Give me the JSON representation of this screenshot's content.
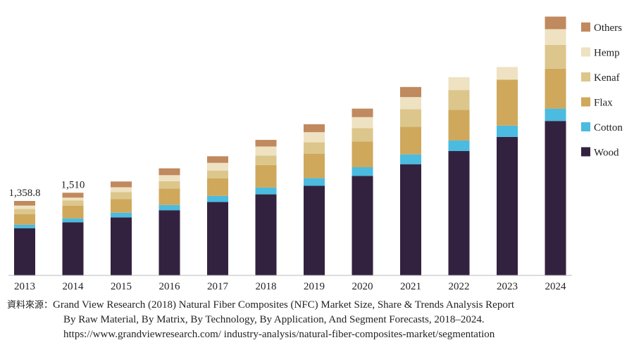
{
  "chart_data": {
    "type": "bar",
    "stacked": true,
    "title": "",
    "xlabel": "",
    "ylabel": "",
    "categories": [
      "2013",
      "2014",
      "2015",
      "2016",
      "2017",
      "2018",
      "2019",
      "2020",
      "2021",
      "2022",
      "2023",
      "2024"
    ],
    "series": [
      {
        "name": "Wood",
        "color": "#33223f",
        "values": [
          860,
          970,
          1060,
          1190,
          1340,
          1480,
          1635,
          1815,
          2030,
          2270,
          2530,
          2820
        ]
      },
      {
        "name": "Cotton",
        "color": "#4bbbe0",
        "values": [
          65,
          70,
          85,
          95,
          110,
          125,
          140,
          160,
          180,
          195,
          205,
          225
        ]
      },
      {
        "name": "Flax",
        "color": "#cfa85c",
        "values": [
          195,
          230,
          250,
          300,
          320,
          410,
          445,
          470,
          505,
          560,
          840,
          730
        ]
      },
      {
        "name": "Kenaf",
        "color": "#dcc68b",
        "values": [
          95,
          100,
          125,
          135,
          145,
          175,
          210,
          245,
          320,
          360,
          0,
          435
        ]
      },
      {
        "name": "Hemp",
        "color": "#eee2c2",
        "values": [
          60,
          50,
          90,
          110,
          140,
          165,
          185,
          200,
          220,
          235,
          230,
          285
        ]
      },
      {
        "name": "Others",
        "color": "#c0895e",
        "values": [
          85,
          90,
          105,
          125,
          120,
          120,
          145,
          155,
          185,
          0,
          0,
          230
        ]
      }
    ],
    "data_labels": [
      {
        "category": "2013",
        "text": "1,358.8"
      },
      {
        "category": "2014",
        "text": "1,510"
      }
    ],
    "ylim": [
      0,
      4900
    ],
    "grid": false,
    "legend_position": "right"
  },
  "source": {
    "prefix": "資料來源：",
    "line1": "Grand View Research (2018) Natural Fiber Composites (NFC) Market Size, Share & Trends Analysis Report",
    "line2": "By Raw Material, By Matrix, By Technology, By Application, And Segment Forecasts, 2018–2024.",
    "line3": "https://www.grandviewresearch.com/ industry-analysis/natural-fiber-composites-market/segmentation"
  }
}
